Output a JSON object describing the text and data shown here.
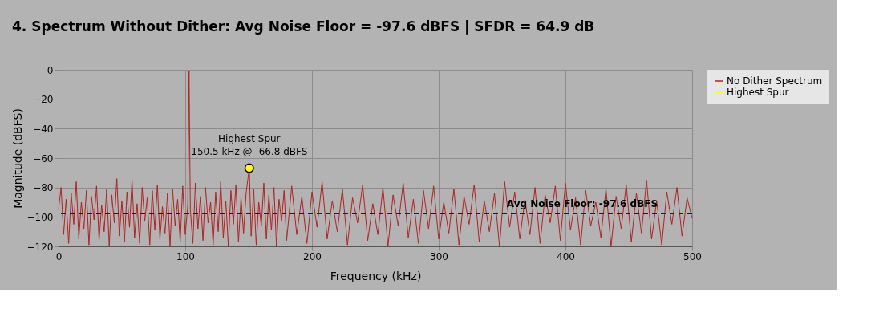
{
  "chart_data": {
    "type": "line",
    "title": "4. Spectrum Without Dither: Avg Noise Floor = -97.6 dBFS | SFDR = 64.9 dB",
    "xlabel": "Frequency (kHz)",
    "ylabel": "Magnitude (dBFS)",
    "xlim": [
      0,
      500
    ],
    "xticks": [
      0,
      100,
      200,
      300,
      400,
      500
    ],
    "ylim": [
      -120,
      0
    ],
    "yticks": [
      -120,
      -100,
      -80,
      -60,
      -40,
      -20,
      0
    ],
    "grid": true,
    "legend": "top right",
    "series": [
      {
        "name": "No Dither Spectrum",
        "color": "#b22222",
        "marker": "none",
        "x": [
          0,
          2,
          4,
          6,
          8,
          10,
          12,
          14,
          16,
          18,
          20,
          22,
          24,
          26,
          28,
          30,
          32,
          34,
          36,
          38,
          40,
          42,
          44,
          46,
          48,
          50,
          52,
          54,
          56,
          58,
          60,
          62,
          64,
          66,
          68,
          70,
          72,
          74,
          76,
          78,
          80,
          82,
          84,
          86,
          88,
          90,
          92,
          94,
          96,
          98,
          100,
          102,
          103,
          104,
          106,
          108,
          110,
          112,
          114,
          116,
          118,
          120,
          122,
          124,
          126,
          128,
          130,
          132,
          134,
          136,
          138,
          140,
          142,
          144,
          146,
          148,
          150.5,
          152,
          154,
          156,
          158,
          160,
          162,
          164,
          166,
          168,
          170,
          172,
          174,
          176,
          178,
          180,
          184,
          188,
          192,
          196,
          200,
          204,
          208,
          212,
          216,
          220,
          224,
          228,
          232,
          236,
          240,
          244,
          248,
          252,
          256,
          260,
          264,
          268,
          272,
          276,
          280,
          284,
          288,
          292,
          296,
          300,
          304,
          308,
          312,
          316,
          320,
          324,
          328,
          332,
          336,
          340,
          344,
          348,
          352,
          356,
          360,
          364,
          368,
          372,
          376,
          380,
          384,
          388,
          392,
          396,
          400,
          404,
          408,
          412,
          416,
          420,
          424,
          428,
          432,
          436,
          440,
          444,
          448,
          452,
          456,
          460,
          464,
          468,
          472,
          476,
          480,
          484,
          488,
          492,
          496,
          500
        ],
        "values": [
          -95,
          -80,
          -112,
          -88,
          -118,
          -84,
          -105,
          -76,
          -115,
          -90,
          -108,
          -82,
          -119,
          -86,
          -102,
          -79,
          -116,
          -92,
          -110,
          -81,
          -120,
          -85,
          -104,
          -74,
          -113,
          -89,
          -117,
          -83,
          -107,
          -75,
          -114,
          -91,
          -118,
          -80,
          -103,
          -87,
          -119,
          -82,
          -109,
          -78,
          -115,
          -93,
          -111,
          -84,
          -120,
          -81,
          -106,
          -88,
          -117,
          -79,
          -112,
          -92,
          -1,
          -95,
          -118,
          -77,
          -108,
          -86,
          -116,
          -80,
          -104,
          -90,
          -119,
          -83,
          -110,
          -76,
          -114,
          -89,
          -120,
          -82,
          -105,
          -78,
          -117,
          -87,
          -111,
          -84,
          -66.8,
          -113,
          -81,
          -119,
          -90,
          -106,
          -77,
          -115,
          -85,
          -109,
          -80,
          -120,
          -88,
          -103,
          -82,
          -116,
          -79,
          -112,
          -86,
          -118,
          -83,
          -107,
          -76,
          -115,
          -89,
          -110,
          -81,
          -119,
          -87,
          -104,
          -78,
          -116,
          -91,
          -112,
          -80,
          -120,
          -85,
          -106,
          -77,
          -114,
          -88,
          -118,
          -82,
          -108,
          -79,
          -115,
          -90,
          -111,
          -81,
          -119,
          -86,
          -105,
          -78,
          -117,
          -89,
          -110,
          -84,
          -120,
          -76,
          -107,
          -83,
          -115,
          -88,
          -112,
          -80,
          -118,
          -85,
          -104,
          -79,
          -116,
          -77,
          -109,
          -87,
          -119,
          -82,
          -106,
          -90,
          -114,
          -81,
          -120,
          -86,
          -108,
          -78,
          -117,
          -84,
          -111,
          -75,
          -115,
          -89,
          -119,
          -83,
          -105,
          -80,
          -113,
          -87,
          -101
        ]
      },
      {
        "name": "Highest Spur",
        "type": "scatter",
        "color": "#ffff00",
        "marker": "circle",
        "x": [
          150.5
        ],
        "values": [
          -66.8
        ]
      }
    ],
    "ref_lines": [
      {
        "axis": "y",
        "value": -97.6,
        "label": "Avg Noise Floor: -97.6 dBFS",
        "color": "#0000ff",
        "line_style": "dashed"
      }
    ],
    "annotations": [
      {
        "text": "Highest Spur\n150.5 kHz @ -66.8 dBFS",
        "x": 150.5,
        "y": -66.8
      }
    ]
  }
}
